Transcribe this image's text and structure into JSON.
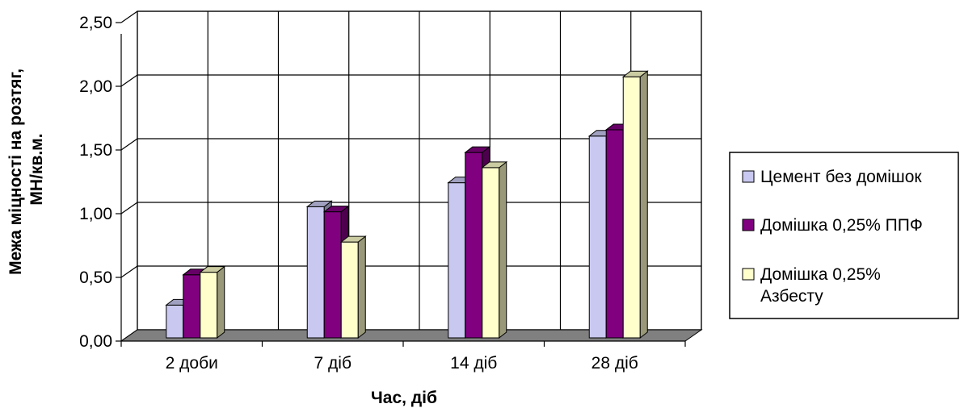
{
  "chart_data": {
    "type": "bar",
    "title": "",
    "xlabel": "Час, діб",
    "ylabel_lines": [
      "Межа міцності на розтяг,",
      "МН/кв.м."
    ],
    "categories": [
      "2 доби",
      "7 діб",
      "14 діб",
      "28 діб"
    ],
    "ylim": [
      0,
      2.5
    ],
    "yticks": [
      "0,00",
      "0,50",
      "1,00",
      "1,50",
      "2,00",
      "2,50"
    ],
    "grid": true,
    "legend_position": "right",
    "series": [
      {
        "name_lines": [
          "Цемент без домішок"
        ],
        "color": "#c8c8f0",
        "values": [
          0.26,
          1.04,
          1.23,
          1.6
        ]
      },
      {
        "name_lines": [
          "Домішка 0,25% ППФ"
        ],
        "color": "#800080",
        "values": [
          0.5,
          1.0,
          1.47,
          1.65
        ]
      },
      {
        "name_lines": [
          "Домішка 0,25%",
          "Азбесту"
        ],
        "color": "#ffffcc",
        "values": [
          0.52,
          0.76,
          1.35,
          2.07
        ]
      }
    ]
  }
}
